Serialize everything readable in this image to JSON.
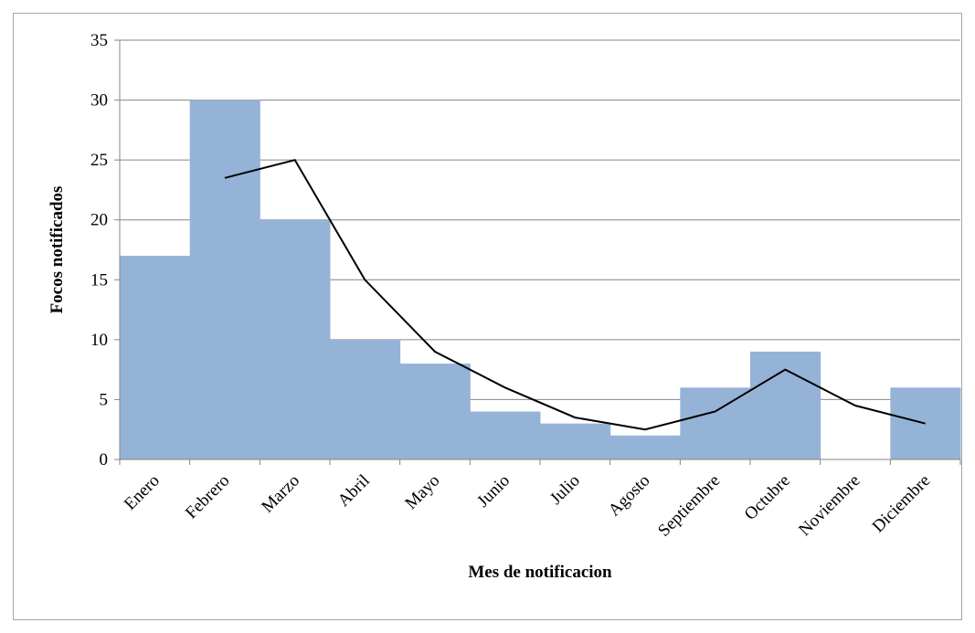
{
  "chart_data": {
    "type": "bar",
    "categories": [
      "Enero",
      "Febrero",
      "Marzo",
      "Abril",
      "Mayo",
      "Junio",
      "Julio",
      "Agosto",
      "Septiembre",
      "Octubre",
      "Noviembre",
      "Diciembre"
    ],
    "series": [
      {
        "values": [
          17,
          30,
          20,
          10,
          8,
          4,
          3,
          2,
          6,
          9,
          0,
          6
        ],
        "color": "#95b3d7",
        "kind": "bar"
      },
      {
        "values": [
          null,
          23.5,
          25,
          15,
          9,
          6,
          3.5,
          2.5,
          4,
          7.5,
          4.5,
          3
        ],
        "color": "#000000",
        "kind": "line"
      }
    ],
    "xlabel": "Mes de notificacion",
    "ylabel": "Focos notificados",
    "ylim": [
      0,
      35
    ],
    "yticks": [
      0,
      5,
      10,
      15,
      20,
      25,
      30,
      35
    ],
    "grid": true,
    "legend": "none"
  }
}
